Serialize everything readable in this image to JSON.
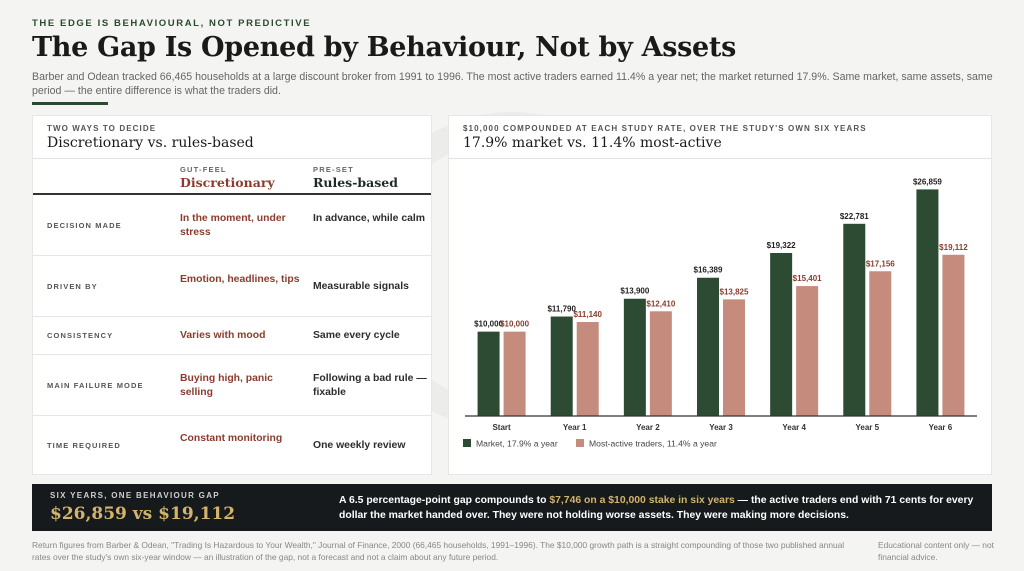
{
  "header": {
    "kicker": "THE EDGE IS BEHAVIOURAL, NOT PREDICTIVE",
    "title": "The Gap Is Opened by Behaviour, Not by Assets",
    "subtitle": "Barber and Odean tracked 66,465 households at a large discount broker from 1991 to 1996. The most active traders earned 11.4% a year net; the market returned 17.9%. Same market, same assets, same period — the entire difference is what the traders did."
  },
  "comparison": {
    "kicker": "TWO WAYS TO DECIDE",
    "title": "Discretionary vs. rules-based",
    "columns": [
      {
        "kicker": "GUT-FEEL",
        "title": "Discretionary"
      },
      {
        "kicker": "PRE-SET",
        "title": "Rules-based"
      }
    ],
    "rows": [
      {
        "label": "DECISION MADE",
        "discretionary": "In the moment, under stress",
        "rules": "In advance, while calm"
      },
      {
        "label": "DRIVEN BY",
        "discretionary": "Emotion, headlines, tips",
        "rules": "Measurable signals"
      },
      {
        "label": "CONSISTENCY",
        "discretionary": "Varies with mood",
        "rules": "Same every cycle"
      },
      {
        "label": "MAIN FAILURE MODE",
        "discretionary": "Buying high, panic selling",
        "rules": "Following a bad rule — fixable"
      },
      {
        "label": "TIME REQUIRED",
        "discretionary": "Constant monitoring",
        "rules": "One weekly review"
      }
    ]
  },
  "chart_data": {
    "type": "bar",
    "kicker": "$10,000 COMPOUNDED AT EACH STUDY RATE, OVER THE STUDY'S OWN SIX YEARS",
    "title": "17.9% market vs. 11.4% most-active",
    "categories": [
      "Start",
      "Year 1",
      "Year 2",
      "Year 3",
      "Year 4",
      "Year 5",
      "Year 6"
    ],
    "series": [
      {
        "name": "Market, 17.9% a year",
        "color": "#2d4a33",
        "label_color": "#222222",
        "values": [
          10000,
          11790,
          13900,
          16389,
          19322,
          22781,
          26859
        ],
        "labels": [
          "$10,000",
          "$11,790",
          "$13,900",
          "$16,389",
          "$19,322",
          "$22,781",
          "$26,859"
        ]
      },
      {
        "name": "Most-active traders, 11.4% a year",
        "color": "#c58b7d",
        "label_color": "#8a3d2e",
        "values": [
          10000,
          11140,
          12410,
          13825,
          15401,
          17156,
          19112
        ],
        "labels": [
          "$10,000",
          "$11,140",
          "$12,410",
          "$13,825",
          "$15,401",
          "$17,156",
          "$19,112"
        ]
      }
    ],
    "ylim": [
      0,
      27500
    ],
    "grid": false,
    "legend": "bottom-left"
  },
  "banner": {
    "kicker": "SIX YEARS, ONE BEHAVIOUR GAP",
    "headline": "$26,859 vs $19,112",
    "text_a": "A 6.5 percentage-point gap compounds to ",
    "text_hl": "$7,746 on a $10,000 stake in six years",
    "text_b": " — the active traders end with 71 cents for every dollar the market handed over. They were not holding worse assets. They were making more decisions."
  },
  "footer": {
    "source": "Return figures from Barber & Odean, \"Trading Is Hazardous to Your Wealth,\" Journal of Finance, 2000 (66,465 households, 1991–1996). The $10,000 growth path is a straight compounding of those two published annual rates over the study's own six-year window — an illustration of the gap, not a forecast and not a claim about any future period.",
    "disclaimer": "Educational content only — not financial advice."
  }
}
